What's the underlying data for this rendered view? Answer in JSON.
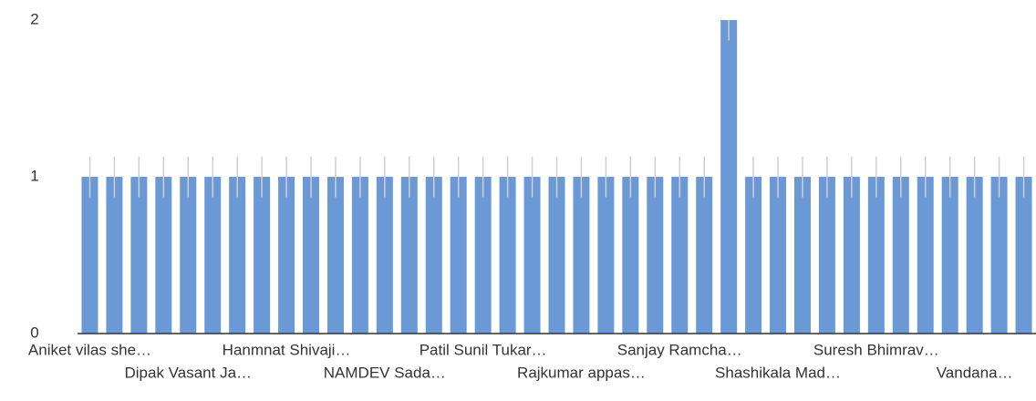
{
  "chart_data": {
    "type": "bar",
    "categories": [
      "Aniket vilas she…",
      null,
      null,
      null,
      "Dipak Vasant Ja…",
      null,
      null,
      null,
      "Hanmnat Shivaji…",
      null,
      null,
      null,
      "NAMDEV Sada…",
      null,
      null,
      null,
      "Patil Sunil Tukar…",
      null,
      null,
      null,
      "Rajkumar appas…",
      null,
      null,
      null,
      "Sanjay Ramcha…",
      null,
      null,
      null,
      "Shashikala Mad…",
      null,
      null,
      null,
      "Suresh Bhimrav…",
      null,
      null,
      null,
      "Vandana…",
      null,
      null
    ],
    "values": [
      1,
      1,
      1,
      1,
      1,
      1,
      1,
      1,
      1,
      1,
      1,
      1,
      1,
      1,
      1,
      1,
      1,
      1,
      1,
      1,
      1,
      1,
      1,
      1,
      1,
      1,
      2,
      1,
      1,
      1,
      1,
      1,
      1,
      1,
      1,
      1,
      1,
      1,
      1
    ],
    "errors": [
      0.13,
      0.13,
      0.13,
      0.13,
      0.13,
      0.13,
      0.13,
      0.13,
      0.13,
      0.13,
      0.13,
      0.13,
      0.13,
      0.13,
      0.13,
      0.13,
      0.13,
      0.13,
      0.13,
      0.13,
      0.13,
      0.13,
      0.13,
      0.13,
      0.13,
      0.13,
      0.13,
      0.13,
      0.13,
      0.13,
      0.13,
      0.13,
      0.13,
      0.13,
      0.13,
      0.13,
      0.13,
      0.13,
      0.13
    ],
    "color": "#6a99d6",
    "error_color": "#d0d0d0",
    "ylim": [
      0,
      2
    ],
    "yticks": [
      0,
      1,
      2
    ]
  }
}
